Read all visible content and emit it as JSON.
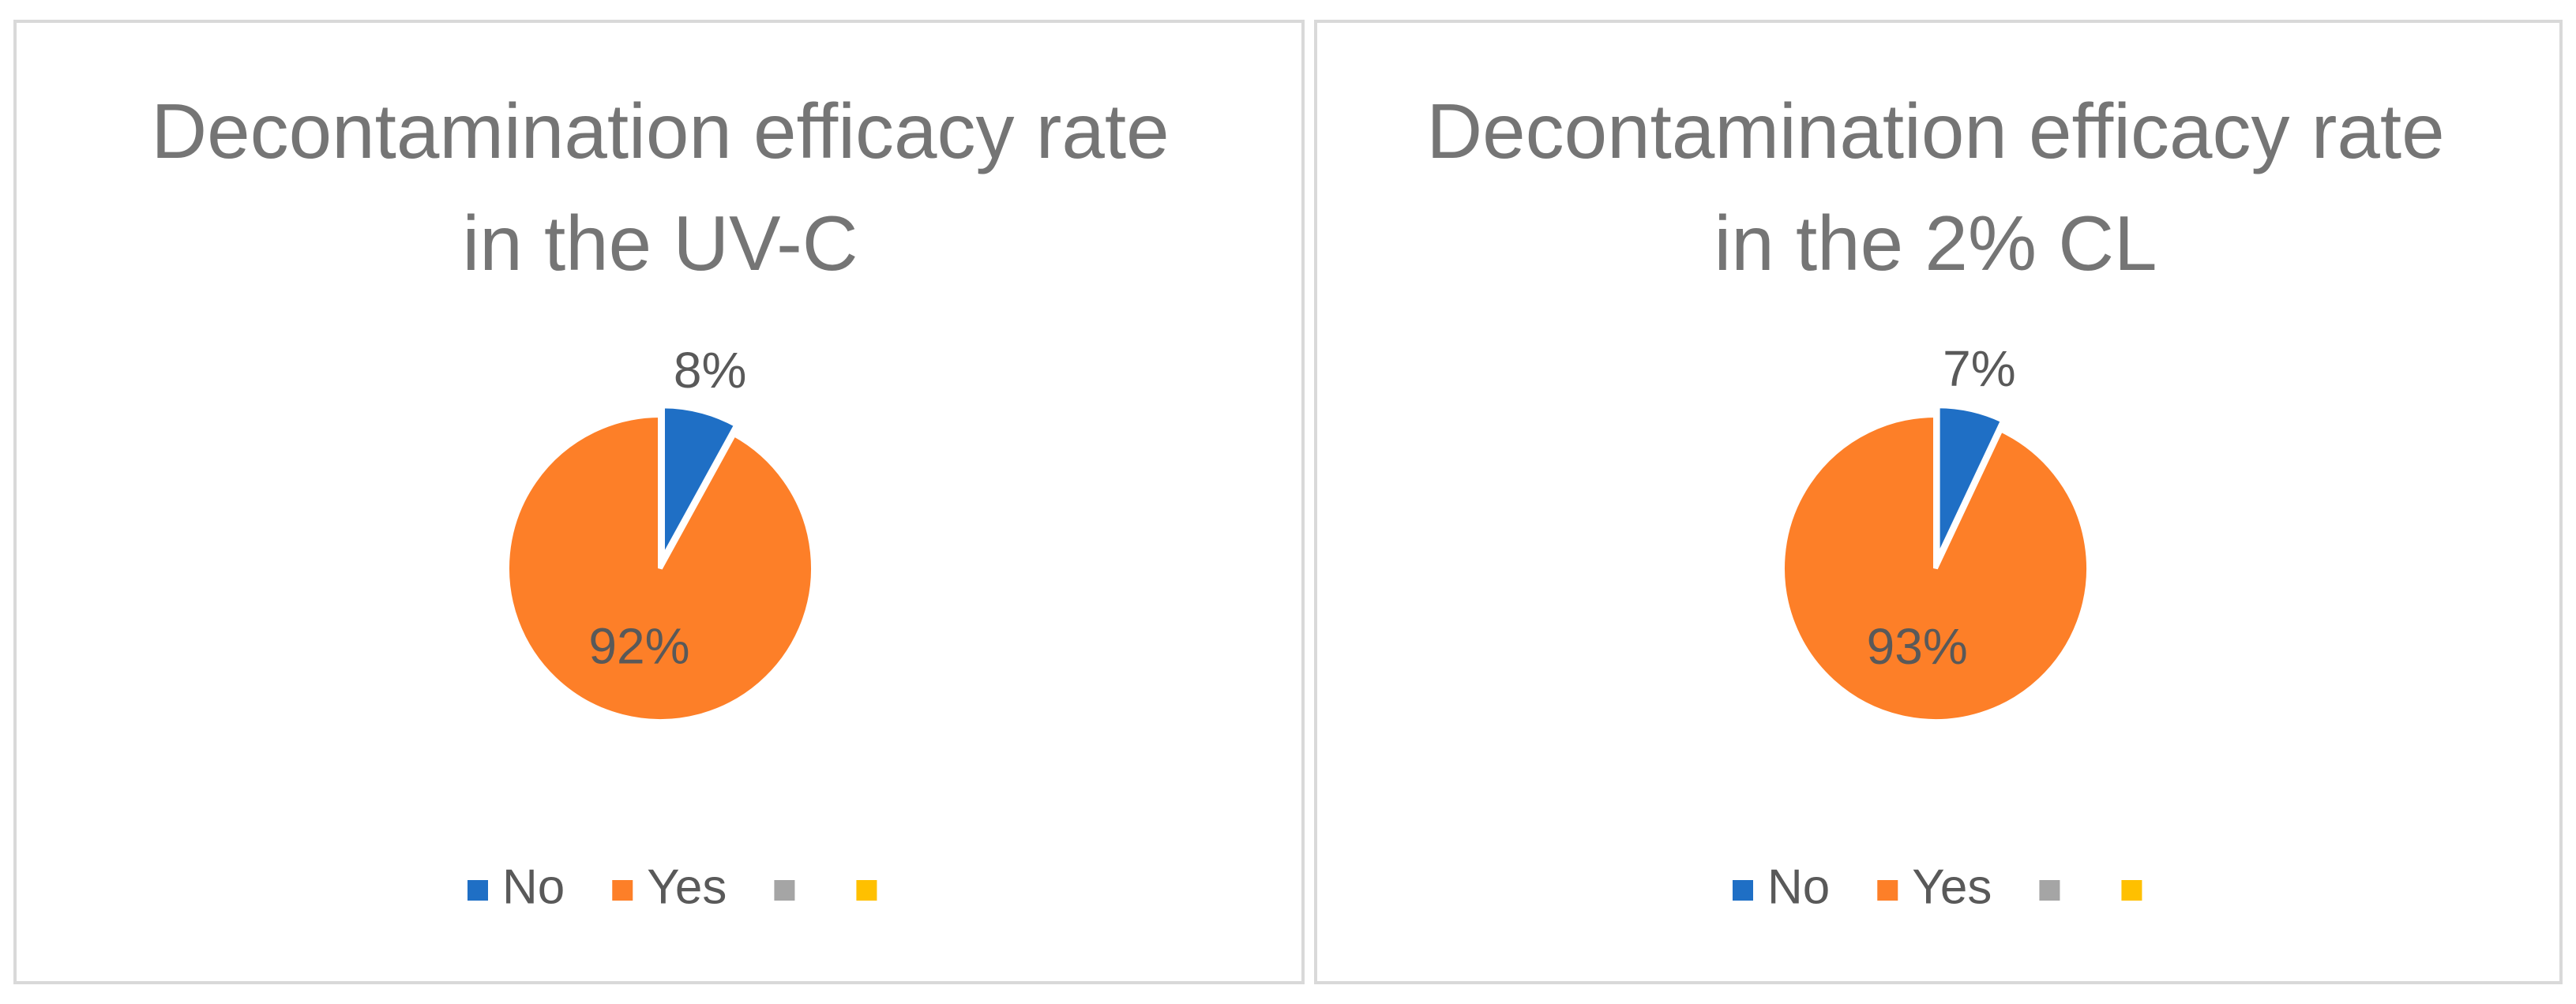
{
  "chart_data": [
    {
      "type": "pie",
      "title": "Decontamination efficacy rate in the UV-C",
      "categories": [
        "No",
        "Yes",
        null,
        null
      ],
      "values": [
        8,
        92,
        null,
        null
      ],
      "value_labels": [
        "8%",
        "92%",
        null,
        null
      ],
      "colors": [
        "#1f6fc5",
        "#fd7f28",
        "#a5a5a5",
        "#ffc000"
      ],
      "legend": "bottom"
    },
    {
      "type": "pie",
      "title": "Decontamination efficacy rate in the 2% CL",
      "categories": [
        "No",
        "Yes",
        null,
        null
      ],
      "values": [
        7,
        93,
        null,
        null
      ],
      "value_labels": [
        "7%",
        "93%",
        null,
        null
      ],
      "colors": [
        "#1f6fc5",
        "#fd7f28",
        "#a5a5a5",
        "#ffc000"
      ],
      "legend": "bottom"
    }
  ]
}
